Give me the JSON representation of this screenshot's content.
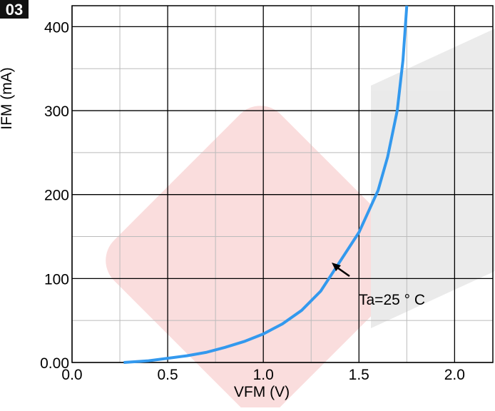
{
  "chart_data": {
    "type": "line",
    "badge": "03",
    "x_label": "VFM (V)",
    "y_label": "IFM (mA)",
    "xlim": [
      0,
      2.2
    ],
    "ylim": [
      0,
      425
    ],
    "xticks": [
      {
        "value": 0,
        "label": "0.0"
      },
      0.5,
      {
        "value": 1,
        "label": "1.0"
      },
      1.5,
      {
        "value": 2,
        "label": "2.0"
      }
    ],
    "yticks": [
      {
        "value": 0,
        "label": "0.00"
      },
      100,
      200,
      300,
      400
    ],
    "x_minor_grid": [
      0.25,
      0.75,
      1.25,
      1.75
    ],
    "y_minor_grid": [
      50,
      150,
      250,
      350
    ],
    "grid": true,
    "annotation": "Ta=25 ° C",
    "series": [
      {
        "color": "#3399ee",
        "x": [
          0.27,
          0.4,
          0.5,
          0.6,
          0.7,
          0.8,
          0.9,
          1.0,
          1.1,
          1.2,
          1.3,
          1.4,
          1.5,
          1.6,
          1.65,
          1.7,
          1.73,
          1.75
        ],
        "values": [
          0,
          2,
          5,
          8,
          12,
          18,
          25,
          34,
          46,
          62,
          85,
          120,
          155,
          205,
          245,
          300,
          360,
          425
        ]
      }
    ]
  }
}
